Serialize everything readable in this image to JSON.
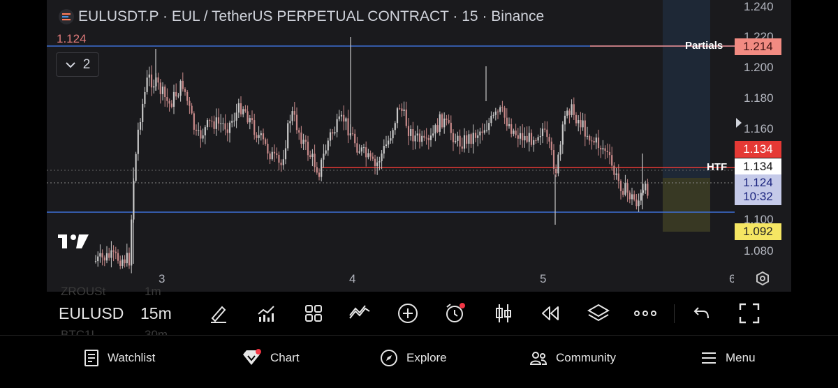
{
  "header": {
    "symbol": "EULUSDT.P",
    "title": "EULUSDT.P · EUL / TetherUS PERPETUAL CONTRACT · 15 · Binance",
    "last_price_label": "1.124",
    "collapse_count": "2"
  },
  "price_axis": {
    "ticks": [
      "1.240",
      "1.220",
      "1.200",
      "1.180",
      "1.160",
      "1.100",
      "1.080"
    ]
  },
  "time_axis": {
    "ticks": [
      "3",
      "4",
      "5",
      "6"
    ]
  },
  "levels": {
    "partials": {
      "label": "Partials",
      "price": "1.214",
      "color": "#f28b82"
    },
    "htf": {
      "label": "HTF",
      "price": "1.134",
      "color": "#ffffff"
    },
    "red_tag": {
      "price": "1.134",
      "color": "#e53935"
    },
    "current": {
      "price": "1.124",
      "countdown": "10:32",
      "color": "#c5cae9"
    },
    "target": {
      "price": "1.092",
      "color": "#f5e663"
    }
  },
  "toolbar": {
    "symbol": "EULUSD",
    "interval": "15m",
    "ghost_symbol_1": "ZROUSt",
    "ghost_symbol_2": "BTC1L",
    "ghost_interval_1": "1m",
    "ghost_interval_2": "30m",
    "icons": [
      "pen-icon",
      "indicators-icon",
      "grid-icon",
      "strategy-icon",
      "add-icon",
      "alarm-icon",
      "candles-icon",
      "replay-icon",
      "layers-icon",
      "more-icon",
      "undo-icon",
      "fullscreen-icon"
    ]
  },
  "bottom_nav": {
    "watchlist": "Watchlist",
    "chart": "Chart",
    "explore": "Explore",
    "community": "Community",
    "menu": "Menu"
  },
  "colors": {
    "background": "#1a1a1d",
    "up": "#c8c8c8",
    "down": "#c98a8a",
    "blue_line": "#3d6fd6",
    "red_line": "#e53935"
  }
}
